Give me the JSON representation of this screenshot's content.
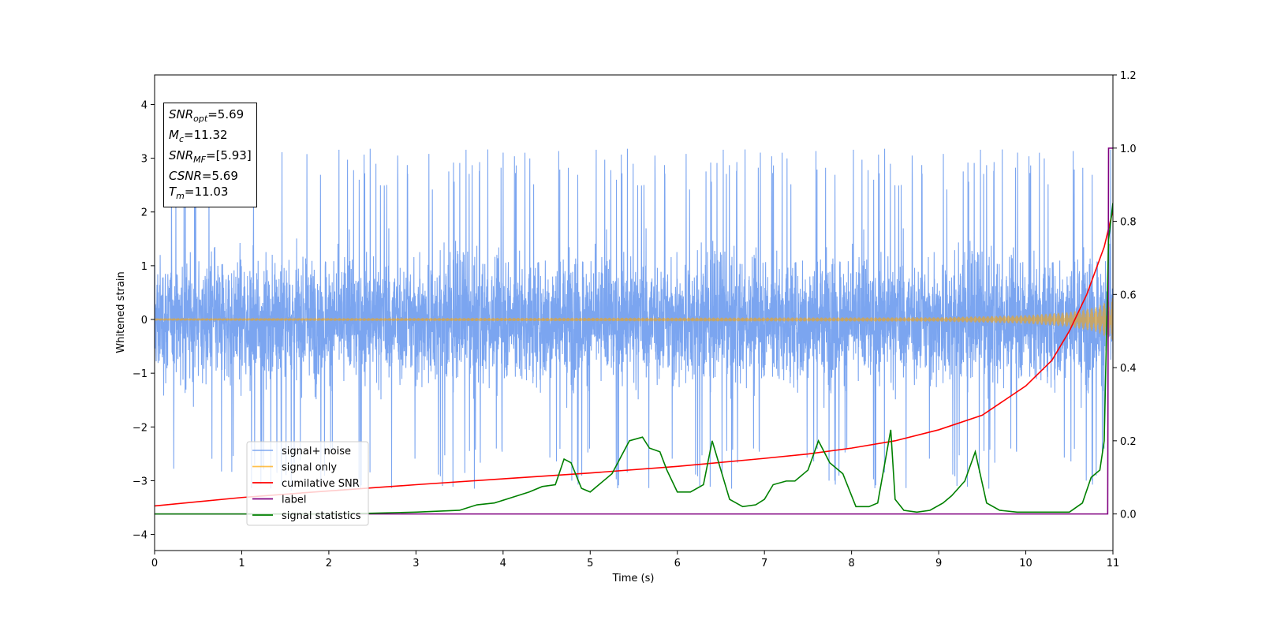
{
  "chart_data": {
    "type": "line",
    "xlabel": "Time (s)",
    "ylabel": "Whitened strain",
    "xlim": [
      0,
      11
    ],
    "ylim": [
      -4.3,
      4.55
    ],
    "ylim_right": [
      -0.1,
      1.2
    ],
    "x_ticks": [
      "0",
      "1",
      "2",
      "3",
      "4",
      "5",
      "6",
      "7",
      "8",
      "9",
      "10",
      "11"
    ],
    "y_ticks": [
      "4",
      "3",
      "2",
      "1",
      "0",
      "−1",
      "−2",
      "−3",
      "−4"
    ],
    "y_ticks_right": [
      "1.2",
      "1.0",
      "0.8",
      "0.6",
      "0.4",
      "0.2",
      "0.0"
    ],
    "grid": false,
    "legend_position": "lower-left",
    "series": [
      {
        "name": "signal+ noise",
        "color": "#6495ed",
        "axis": "left",
        "description": "whitened noise, amplitude roughly ±2 with peaks near ±3.3"
      },
      {
        "name": "signal only",
        "color": "#ffa500",
        "axis": "left",
        "envelope": {
          "x": [
            0,
            9,
            10,
            10.5,
            10.8,
            11
          ],
          "amplitude": [
            0.02,
            0.04,
            0.08,
            0.14,
            0.23,
            0.4
          ]
        }
      },
      {
        "name": "cumilative SNR",
        "color": "#ff0000",
        "axis": "right",
        "x": [
          0,
          1,
          2,
          3,
          4,
          5,
          6,
          7,
          7.5,
          8,
          8.5,
          9,
          9.5,
          10,
          10.3,
          10.5,
          10.7,
          10.9,
          11.0
        ],
        "y": [
          0.022,
          0.045,
          0.063,
          0.08,
          0.096,
          0.112,
          0.13,
          0.152,
          0.164,
          0.18,
          0.2,
          0.23,
          0.27,
          0.35,
          0.42,
          0.5,
          0.6,
          0.73,
          0.83
        ]
      },
      {
        "name": "label",
        "color": "#800080",
        "axis": "right",
        "x": [
          0,
          10.94,
          10.95,
          11.0
        ],
        "y": [
          0,
          0,
          1,
          1
        ]
      },
      {
        "name": "signal statistics",
        "color": "#008000",
        "axis": "right",
        "x": [
          0,
          1,
          2,
          2.5,
          3,
          3.5,
          3.7,
          3.9,
          4.1,
          4.3,
          4.45,
          4.6,
          4.7,
          4.78,
          4.9,
          5.0,
          5.1,
          5.25,
          5.45,
          5.6,
          5.68,
          5.8,
          5.88,
          6.0,
          6.15,
          6.3,
          6.4,
          6.5,
          6.6,
          6.75,
          6.9,
          7.0,
          7.1,
          7.25,
          7.35,
          7.5,
          7.62,
          7.75,
          7.9,
          8.05,
          8.2,
          8.3,
          8.45,
          8.5,
          8.6,
          8.75,
          8.9,
          9.05,
          9.15,
          9.3,
          9.42,
          9.55,
          9.7,
          9.9,
          10.2,
          10.5,
          10.65,
          10.75,
          10.85,
          10.9,
          10.95,
          11.0
        ],
        "y": [
          0.0,
          0.0,
          0.0,
          0.002,
          0.005,
          0.01,
          0.025,
          0.03,
          0.045,
          0.06,
          0.075,
          0.08,
          0.15,
          0.14,
          0.07,
          0.06,
          0.08,
          0.11,
          0.2,
          0.21,
          0.18,
          0.17,
          0.12,
          0.06,
          0.06,
          0.08,
          0.2,
          0.12,
          0.04,
          0.02,
          0.025,
          0.04,
          0.08,
          0.09,
          0.09,
          0.12,
          0.2,
          0.14,
          0.11,
          0.02,
          0.02,
          0.03,
          0.23,
          0.04,
          0.01,
          0.005,
          0.01,
          0.03,
          0.05,
          0.09,
          0.17,
          0.03,
          0.01,
          0.005,
          0.005,
          0.005,
          0.03,
          0.1,
          0.12,
          0.2,
          0.75,
          0.85
        ]
      }
    ]
  },
  "annotation": {
    "snr_opt": {
      "sym": "SNR",
      "sub": "opt",
      "value": "=5.69"
    },
    "mc": {
      "sym": "M",
      "sub": "c",
      "value": "=11.32"
    },
    "snr_mf": {
      "sym": "SNR",
      "sub": "MF",
      "value": "=[5.93]"
    },
    "csnr": {
      "sym": "CSNR",
      "value": "=5.69"
    },
    "tm": {
      "sym": "T",
      "sub": "m",
      "value": "=11.03"
    }
  }
}
